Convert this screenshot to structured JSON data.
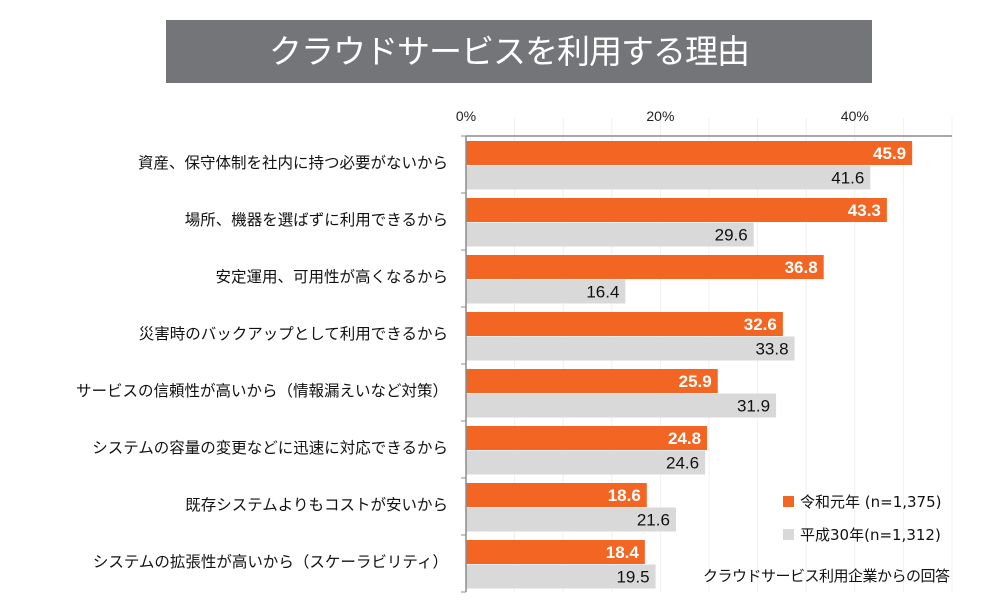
{
  "chart_data": {
    "type": "bar",
    "orientation": "horizontal",
    "title": "クラウドサービスを利用する理由",
    "xlabel": "",
    "ylabel": "",
    "xlim": [
      0,
      50
    ],
    "x_ticks": [
      "0%",
      "20%",
      "40%"
    ],
    "x_tick_values": [
      0,
      20,
      40
    ],
    "grid": true,
    "legend_position": "bottom-right",
    "categories": [
      "資産、保守体制を社内に持つ必要がないから",
      "場所、機器を選ばずに利用できるから",
      "安定運用、可用性が高くなるから",
      "災害時のバックアップとして利用できるから",
      "サービスの信頼性が高いから（情報漏えいなど対策）",
      "システムの容量の変更などに迅速に対応できるから",
      "既存システムよりもコストが安いから",
      "システムの拡張性が高いから（スケーラビリティ）"
    ],
    "series": [
      {
        "name": "令和元年 (n=1,375)",
        "color": "#F26522",
        "values": [
          45.9,
          43.3,
          36.8,
          32.6,
          25.9,
          24.8,
          18.6,
          18.4
        ]
      },
      {
        "name": "平成30年(n=1,312)",
        "color": "#D9D9D9",
        "values": [
          41.6,
          29.6,
          16.4,
          33.8,
          31.9,
          24.6,
          21.6,
          19.5
        ]
      }
    ],
    "value_labels": [
      [
        "45.9",
        "43.3",
        "36.8",
        "32.6",
        "25.9",
        "24.8",
        "18.6",
        "18.4"
      ],
      [
        "41.6",
        "29.6",
        "16.4",
        "33.8",
        "31.9",
        "24.6",
        "21.6",
        "19.5"
      ]
    ],
    "annotation": "クラウドサービス利用企業からの回答"
  },
  "colors": {
    "banner": "#747579",
    "axis": "#8c8c8c",
    "grid": "#f0f0f0"
  }
}
